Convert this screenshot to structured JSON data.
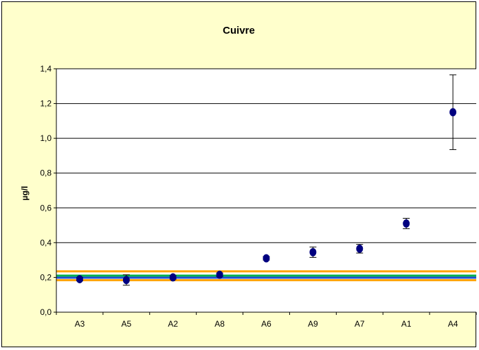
{
  "chart_data": {
    "type": "scatter",
    "title": "Cuivre",
    "ylabel": "µg/l",
    "xlabel": "",
    "categories": [
      "A3",
      "A5",
      "A2",
      "A8",
      "A6",
      "A9",
      "A7",
      "A1",
      "A4"
    ],
    "series": [
      {
        "values": [
          0.19,
          0.185,
          0.2,
          0.215,
          0.31,
          0.345,
          0.365,
          0.51,
          1.15
        ],
        "errors": [
          0.01,
          0.03,
          0.01,
          0.01,
          0.01,
          0.03,
          0.025,
          0.03,
          0.215
        ],
        "color": "#000080"
      }
    ],
    "reference_lines": [
      {
        "value": 0.235,
        "color": "#ffa500"
      },
      {
        "value": 0.21,
        "color": "#00b050"
      },
      {
        "value": 0.198,
        "color": "#1f4fd0"
      },
      {
        "value": 0.184,
        "color": "#ffa500"
      }
    ],
    "ylim": [
      0,
      1.4
    ],
    "yticks": [
      "0,0",
      "0,2",
      "0,4",
      "0,6",
      "0,8",
      "1,0",
      "1,2",
      "1,4"
    ],
    "grid": true,
    "legend": "none"
  }
}
